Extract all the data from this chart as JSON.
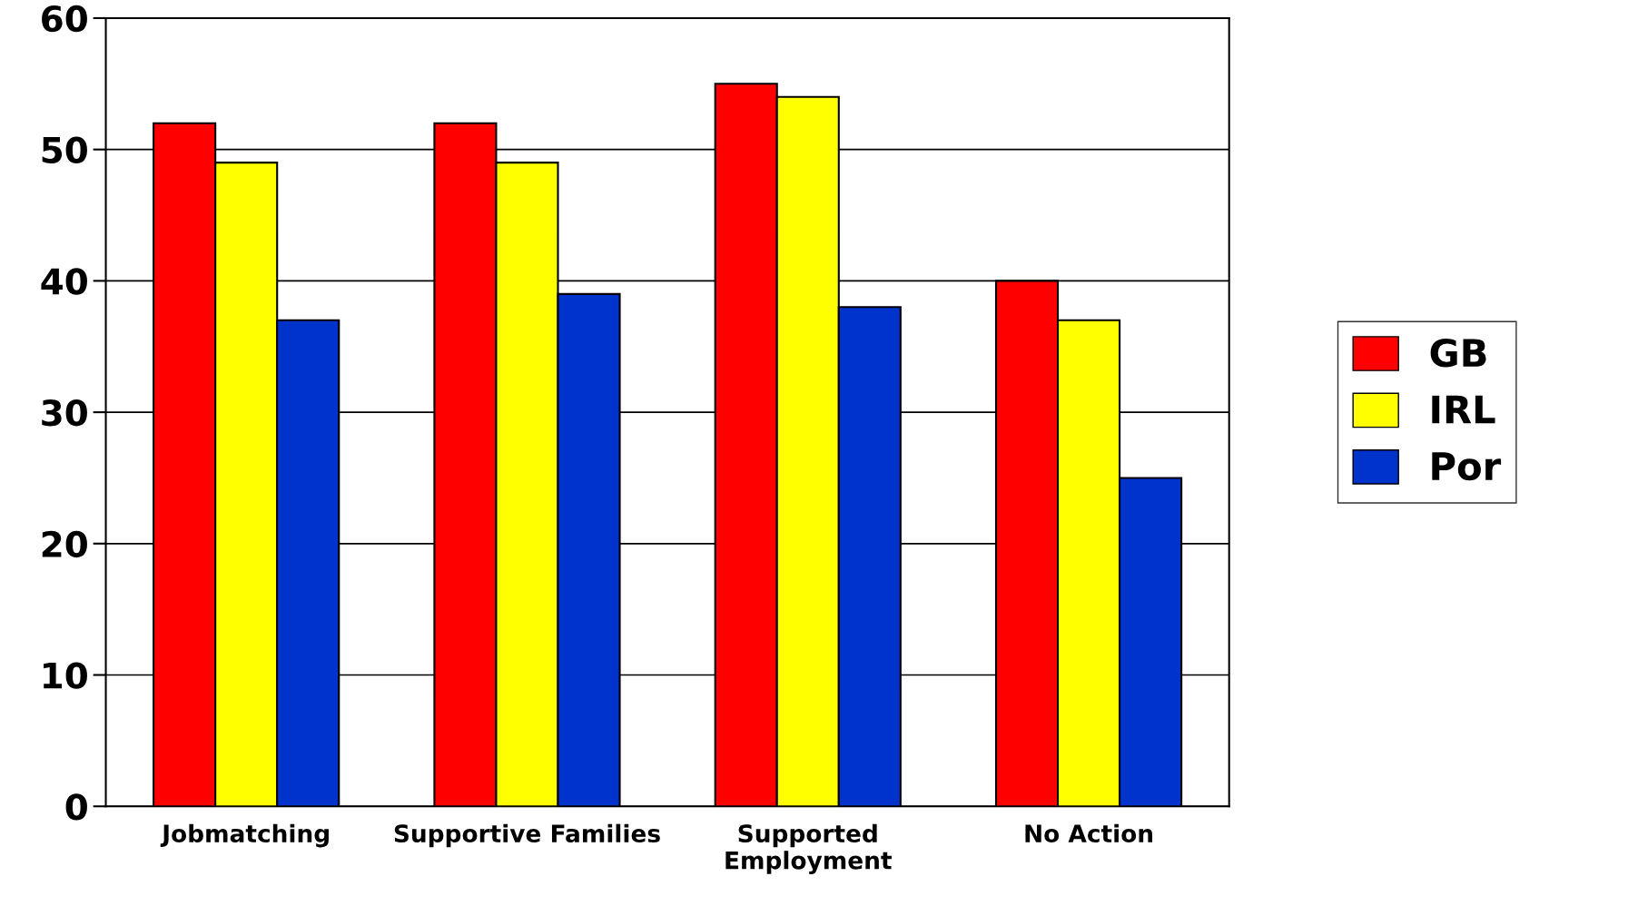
{
  "chart_data": {
    "type": "bar",
    "categories": [
      "Jobmatching",
      "Supportive Families",
      "Supported\nEmployment",
      "No Action"
    ],
    "series": [
      {
        "name": "GB",
        "color": "#ff0000",
        "values": [
          52,
          52,
          55,
          40
        ]
      },
      {
        "name": "IRL",
        "color": "#ffff00",
        "values": [
          49,
          49,
          54,
          37
        ]
      },
      {
        "name": "Por",
        "color": "#0033cc",
        "values": [
          37,
          39,
          38,
          25
        ]
      }
    ],
    "ylim": [
      0,
      60
    ],
    "yticks": [
      0,
      10,
      20,
      30,
      40,
      50,
      60
    ],
    "grid": "y",
    "legend": "right"
  }
}
